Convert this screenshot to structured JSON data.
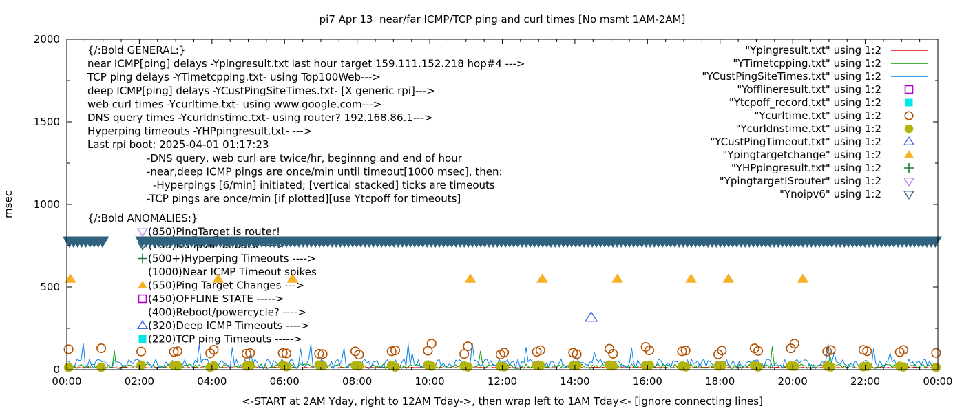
{
  "title": "pi7 Apr 13  near/far ICMP/TCP ping and curl times [No msmt 1AM-2AM]",
  "ylabel": "msec",
  "xlabel": "<-START at 2AM Yday, right to 12AM Tday->, then wrap left to 1AM Tday<- [ignore connecting lines]",
  "colors": {
    "red": "#e10000",
    "green": "#00a000",
    "blue": "#0a80e8",
    "magenta": "#b100ce",
    "cyan": "#00e5e5",
    "darkred": "#b25000",
    "olive": "#b3b30e",
    "royalblue": "#4169e1",
    "orange": "#f7b128",
    "darkgreen": "#1b7a3f",
    "violet": "#c183f2",
    "steel": "#30627e",
    "axis": "#000000"
  },
  "legend": {
    "items": [
      {
        "label": "\"Ypingresult.txt\" using 1:2",
        "marker": "line",
        "color": "red"
      },
      {
        "label": "\"YTimetcpping.txt\" using 1:2",
        "marker": "line",
        "color": "green"
      },
      {
        "label": "\"YCustPingSiteTimes.txt\" using 1:2",
        "marker": "line",
        "color": "blue"
      },
      {
        "label": "\"Yofflineresult.txt\" using 1:2",
        "marker": "square-open",
        "color": "magenta"
      },
      {
        "label": "\"Ytcpoff_record.txt\" using 1:2",
        "marker": "square-filled",
        "color": "cyan"
      },
      {
        "label": "\"Ycurltime.txt\" using 1:2",
        "marker": "circle-open",
        "color": "darkred"
      },
      {
        "label": "\"Ycurldnstime.txt\" using 1:2",
        "marker": "circle-filled",
        "color": "olive"
      },
      {
        "label": "\"YCustPingTimeout.txt\" using 1:2",
        "marker": "triangle-open",
        "color": "royalblue"
      },
      {
        "label": "\"Ypingtargetchange\" using 1:2",
        "marker": "triangle-filled",
        "color": "orange"
      },
      {
        "label": "\"YHPpingresult.txt\" using 1:2",
        "marker": "plus",
        "color": "darkgreen"
      },
      {
        "label": "\"YpingtargetISrouter\" using 1:2",
        "marker": "triangle-down-open",
        "color": "violet"
      },
      {
        "label": "\"Ynoipv6\" using 1:2",
        "marker": "triangle-down-open",
        "color": "steel"
      }
    ]
  },
  "annotations": {
    "general": [
      {
        "text": "{/:Bold GENERAL:}",
        "x": 127
      },
      {
        "text": "near ICMP[ping] delays -Ypingresult.txt last hour target 159.111.152.218 hop#4 --->",
        "x": 127
      },
      {
        "text": "TCP ping delays -YTimetcpping.txt- using Top100Web--->",
        "x": 127
      },
      {
        "text": "deep ICMP[ping] delays -YCustPingSiteTimes.txt- [X generic rpi]--->",
        "x": 127
      },
      {
        "text": "web curl times -Ycurltime.txt- using www.google.com--->",
        "x": 127
      },
      {
        "text": "DNS query times -Ycurldnstime.txt- using router? 192.168.86.1--->",
        "x": 127
      },
      {
        "text": "Hyperping timeouts -YHPpingresult.txt- --->",
        "x": 127
      },
      {
        "text": "Last rpi boot: 2025-04-01 01:17:23",
        "x": 127
      },
      {
        "text": "-DNS query, web curl are twice/hr, beginnng and end of hour",
        "x": 213
      },
      {
        "text": "-near,deep ICMP pings are once/min until timeout[1000 msec], then:",
        "x": 213
      },
      {
        "text": "-Hyperpings [6/min] initiated; [vertical stacked] ticks are timeouts",
        "x": 222
      },
      {
        "text": "-TCP pings are once/min [if plotted][use Ytcpoff for timeouts]",
        "x": 213
      }
    ],
    "anomalies": [
      {
        "text": "{/:Bold ANOMALIES:}",
        "x": 127
      },
      {
        "text": "(850)PingTarget is router!",
        "x": 215,
        "marker": "triangle-down-open",
        "color": "violet"
      },
      {
        "text": "(785)No ipv6 fallback ---->",
        "x": 215,
        "marker": "triangle-down-open",
        "color": "steel"
      },
      {
        "text": "(500+)Hyperping Timeouts ---->",
        "x": 215,
        "marker": "plus",
        "color": "darkgreen"
      },
      {
        "text": "(1000)Near ICMP Timeout spikes",
        "x": 215
      },
      {
        "text": "(550)Ping Target Changes --->",
        "x": 215,
        "marker": "triangle-filled",
        "color": "orange"
      },
      {
        "text": "(450)OFFLINE STATE ----->",
        "x": 215,
        "marker": "square-open",
        "color": "magenta"
      },
      {
        "text": "(400)Reboot/powercycle? ---->",
        "x": 215
      },
      {
        "text": "(320)Deep ICMP Timeouts ---->",
        "x": 215,
        "marker": "triangle-open",
        "color": "royalblue"
      },
      {
        "text": "(220)TCP ping Timeouts ----->",
        "x": 215,
        "marker": "square-filled",
        "color": "cyan"
      }
    ]
  },
  "chart_data": {
    "type": "line+scatter",
    "title": "pi7 Apr 13  near/far ICMP/TCP ping and curl times [No msmt 1AM-2AM]",
    "xlabel": "<-START at 2AM Yday, right to 12AM Tday->, then wrap left to 1AM Tday<- [ignore connecting lines]",
    "ylabel": "msec",
    "xlim_hours": [
      0,
      24
    ],
    "ylim": [
      0,
      2000
    ],
    "y_ticks": [
      0,
      500,
      1000,
      1500,
      2000
    ],
    "y_minor_step": 250,
    "x_tick_step_hours": 2,
    "x_minor_step_hours": 0.5,
    "x_tick_labels": [
      "00:00",
      "02:00",
      "04:00",
      "06:00",
      "08:00",
      "10:00",
      "12:00",
      "14:00",
      "16:00",
      "18:00",
      "20:00",
      "22:00",
      "00:00"
    ],
    "grid": false,
    "legend_position": "top-right-inside",
    "no_measurement_window": "01:00-02:00",
    "series": [
      {
        "name": "Ypingresult.txt",
        "type": "line",
        "color": "red",
        "summary": "near ICMP ping delay, flat ~10-15 msec all day",
        "synth": {
          "base": 10,
          "amp": 5,
          "spike_p": 0,
          "spike": 0
        }
      },
      {
        "name": "YTimetcpping.txt",
        "type": "line",
        "color": "green",
        "summary": "TCP ping delay, noisy 5-35 msec with spikes to ~150",
        "synth": {
          "base": 6,
          "amp": 28,
          "spike_p": 0.03,
          "spike": 90
        }
      },
      {
        "name": "YCustPingSiteTimes.txt",
        "type": "line",
        "color": "blue",
        "summary": "deep ICMP ping delay, noisy 10-65 msec with spikes to ~150",
        "synth": {
          "base": 10,
          "amp": 55,
          "spike_p": 0.04,
          "spike": 80
        }
      },
      {
        "name": "Ycurltime.txt",
        "type": "scatter",
        "marker": "circle-open",
        "color": "darkred",
        "pattern": "pairs at every hour boundary (twice/hr), skip 01:00-02:00",
        "y_range": [
          88,
          145
        ]
      },
      {
        "name": "Ycurldnstime.txt",
        "type": "scatter",
        "marker": "circle-filled",
        "color": "olive",
        "pattern": "pairs at every hour boundary (twice/hr), skip 01:00-02:00",
        "y_range": [
          14,
          28
        ]
      },
      {
        "name": "YCustPingTimeout.txt",
        "type": "scatter",
        "marker": "triangle-open",
        "color": "royalblue",
        "points": [
          [
            14.45,
            315
          ]
        ]
      },
      {
        "name": "Ypingtargetchange",
        "type": "scatter",
        "marker": "triangle-filled",
        "color": "orange",
        "y_value": 548,
        "x_hours": [
          0.1,
          4.17,
          6.22,
          11.12,
          13.1,
          15.17,
          17.2,
          18.23,
          20.28
        ]
      },
      {
        "name": "YHPpingresult.txt",
        "type": "scatter",
        "marker": "plus",
        "color": "darkgreen",
        "points": []
      },
      {
        "name": "Yofflineresult.txt",
        "type": "scatter",
        "marker": "square-open",
        "color": "magenta",
        "points": []
      },
      {
        "name": "Ytcpoff_record.txt",
        "type": "scatter",
        "marker": "square-filled",
        "color": "cyan",
        "points": []
      },
      {
        "name": "YpingtargetISrouter",
        "type": "scatter",
        "marker": "triangle-down-open",
        "color": "violet",
        "points": []
      },
      {
        "name": "Ynoipv6",
        "type": "band",
        "marker": "triangle-down-filled",
        "color": "steel",
        "y_center": 775,
        "band_halfwidth_msec": 32,
        "segments_hours": [
          [
            -0.1,
            1.25
          ],
          [
            1.9,
            24.2
          ]
        ]
      }
    ]
  }
}
